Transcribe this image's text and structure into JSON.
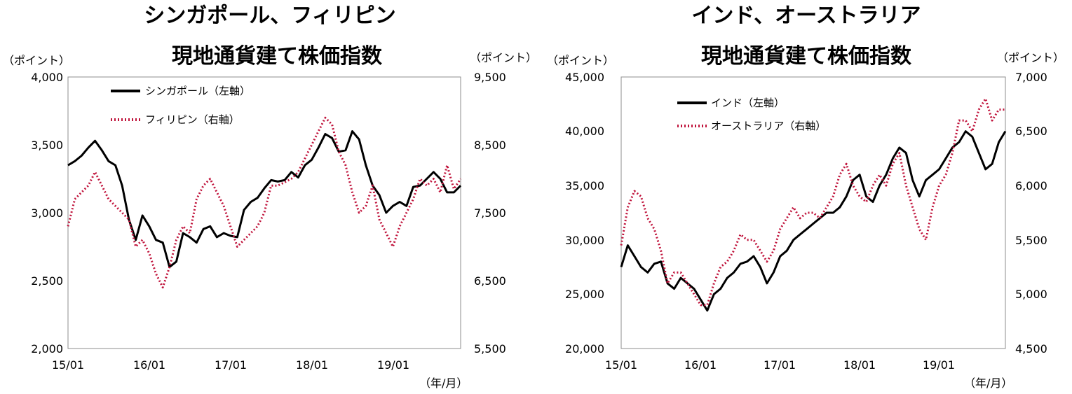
{
  "colors": {
    "series_black": "#000000",
    "series_red": "#c0143c"
  },
  "chart_data": [
    {
      "type": "line",
      "title_line1": "シンガポール、フィリピン",
      "title_line2": "現地通貨建て株価指数",
      "y_left_unit": "（ポイント）",
      "y_right_unit": "（ポイント）",
      "x_unit": "（年/月）",
      "ylim_left": [
        2000,
        4000
      ],
      "ylim_right": [
        5500,
        9500
      ],
      "y_left_ticks": [
        "2,000",
        "2,500",
        "3,000",
        "3,500",
        "4,000"
      ],
      "y_right_ticks": [
        "5,500",
        "6,500",
        "7,500",
        "8,500",
        "9,500"
      ],
      "x_ticks": [
        "15/01",
        "16/01",
        "17/01",
        "18/01",
        "19/01"
      ],
      "x_range_months": [
        0,
        58
      ],
      "series": [
        {
          "name": "シンガポール（左軸）",
          "axis": "left",
          "style": "solid",
          "x": [
            0,
            1,
            2,
            3,
            4,
            5,
            6,
            7,
            8,
            9,
            10,
            11,
            12,
            13,
            14,
            15,
            16,
            17,
            18,
            19,
            20,
            21,
            22,
            23,
            24,
            25,
            26,
            27,
            28,
            29,
            30,
            31,
            32,
            33,
            34,
            35,
            36,
            37,
            38,
            39,
            40,
            41,
            42,
            43,
            44,
            45,
            46,
            47,
            48,
            49,
            50,
            51,
            52,
            53,
            54,
            55,
            56,
            57,
            58
          ],
          "y": [
            3350,
            3380,
            3420,
            3480,
            3530,
            3460,
            3380,
            3350,
            3200,
            2950,
            2800,
            2980,
            2900,
            2800,
            2780,
            2600,
            2640,
            2850,
            2820,
            2780,
            2880,
            2900,
            2820,
            2850,
            2830,
            2820,
            3020,
            3080,
            3110,
            3180,
            3240,
            3230,
            3240,
            3300,
            3260,
            3350,
            3390,
            3480,
            3580,
            3550,
            3450,
            3460,
            3600,
            3540,
            3350,
            3200,
            3130,
            3000,
            3050,
            3080,
            3050,
            3190,
            3200,
            3250,
            3300,
            3250,
            3150,
            3150,
            3200
          ]
        },
        {
          "name": "フィリピン（右軸）",
          "axis": "right",
          "style": "dotted",
          "x": [
            0,
            1,
            2,
            3,
            4,
            5,
            6,
            7,
            8,
            9,
            10,
            11,
            12,
            13,
            14,
            15,
            16,
            17,
            18,
            19,
            20,
            21,
            22,
            23,
            24,
            25,
            26,
            27,
            28,
            29,
            30,
            31,
            32,
            33,
            34,
            35,
            36,
            37,
            38,
            39,
            40,
            41,
            42,
            43,
            44,
            45,
            46,
            47,
            48,
            49,
            50,
            51,
            52,
            53,
            54,
            55,
            56,
            57,
            58
          ],
          "y": [
            7300,
            7700,
            7800,
            7900,
            8100,
            7900,
            7700,
            7600,
            7500,
            7400,
            7000,
            7100,
            6900,
            6600,
            6400,
            6700,
            7100,
            7300,
            7200,
            7700,
            7900,
            8000,
            7800,
            7600,
            7300,
            7000,
            7100,
            7200,
            7300,
            7500,
            7900,
            7900,
            7950,
            8000,
            8100,
            8300,
            8500,
            8700,
            8900,
            8800,
            8400,
            8200,
            7800,
            7500,
            7600,
            7900,
            7400,
            7200,
            7000,
            7300,
            7500,
            7700,
            8000,
            7900,
            8000,
            7800,
            8200,
            7850,
            8000
          ]
        }
      ]
    },
    {
      "type": "line",
      "title_line1": "インド、オーストラリア",
      "title_line2": "現地通貨建て株価指数",
      "y_left_unit": "（ポイント）",
      "y_right_unit": "（ポイント）",
      "x_unit": "（年/月）",
      "ylim_left": [
        20000,
        45000
      ],
      "ylim_right": [
        4500,
        7000
      ],
      "y_left_ticks": [
        "20,000",
        "25,000",
        "30,000",
        "35,000",
        "40,000",
        "45,000"
      ],
      "y_right_ticks": [
        "4,500",
        "5,000",
        "5,500",
        "6,000",
        "6,500",
        "7,000"
      ],
      "x_ticks": [
        "15/01",
        "16/01",
        "17/01",
        "18/01",
        "19/01"
      ],
      "x_range_months": [
        0,
        58
      ],
      "series": [
        {
          "name": "インド（左軸）",
          "axis": "left",
          "style": "solid",
          "x": [
            0,
            1,
            2,
            3,
            4,
            5,
            6,
            7,
            8,
            9,
            10,
            11,
            12,
            13,
            14,
            15,
            16,
            17,
            18,
            19,
            20,
            21,
            22,
            23,
            24,
            25,
            26,
            27,
            28,
            29,
            30,
            31,
            32,
            33,
            34,
            35,
            36,
            37,
            38,
            39,
            40,
            41,
            42,
            43,
            44,
            45,
            46,
            47,
            48,
            49,
            50,
            51,
            52,
            53,
            54,
            55,
            56,
            57,
            58
          ],
          "y": [
            27500,
            29500,
            28500,
            27500,
            27000,
            27800,
            28000,
            26000,
            25500,
            26500,
            26000,
            25500,
            24500,
            23500,
            25000,
            25500,
            26500,
            27000,
            27800,
            28000,
            28500,
            27500,
            26000,
            27000,
            28500,
            29000,
            30000,
            30500,
            31000,
            31500,
            32000,
            32500,
            32500,
            33000,
            34000,
            35500,
            36000,
            34000,
            33500,
            35000,
            36000,
            37500,
            38500,
            38000,
            35500,
            34000,
            35500,
            36000,
            36500,
            37500,
            38500,
            39000,
            40000,
            39500,
            38000,
            36500,
            37000,
            39000,
            40000
          ]
        },
        {
          "name": "オーストラリア（右軸）",
          "axis": "right",
          "style": "dotted",
          "x": [
            0,
            1,
            2,
            3,
            4,
            5,
            6,
            7,
            8,
            9,
            10,
            11,
            12,
            13,
            14,
            15,
            16,
            17,
            18,
            19,
            20,
            21,
            22,
            23,
            24,
            25,
            26,
            27,
            28,
            29,
            30,
            31,
            32,
            33,
            34,
            35,
            36,
            37,
            38,
            39,
            40,
            41,
            42,
            43,
            44,
            45,
            46,
            47,
            48,
            49,
            50,
            51,
            52,
            53,
            54,
            55,
            56,
            57,
            58
          ],
          "y": [
            5450,
            5800,
            5950,
            5900,
            5700,
            5600,
            5400,
            5100,
            5200,
            5200,
            5100,
            5000,
            4900,
            4900,
            5100,
            5250,
            5300,
            5400,
            5550,
            5500,
            5500,
            5400,
            5300,
            5400,
            5600,
            5700,
            5800,
            5700,
            5750,
            5750,
            5700,
            5800,
            5900,
            6100,
            6200,
            6000,
            5900,
            5850,
            6000,
            6100,
            6000,
            6200,
            6300,
            6000,
            5800,
            5600,
            5500,
            5800,
            6000,
            6100,
            6300,
            6600,
            6600,
            6500,
            6700,
            6800,
            6600,
            6700,
            6700
          ]
        }
      ]
    }
  ]
}
